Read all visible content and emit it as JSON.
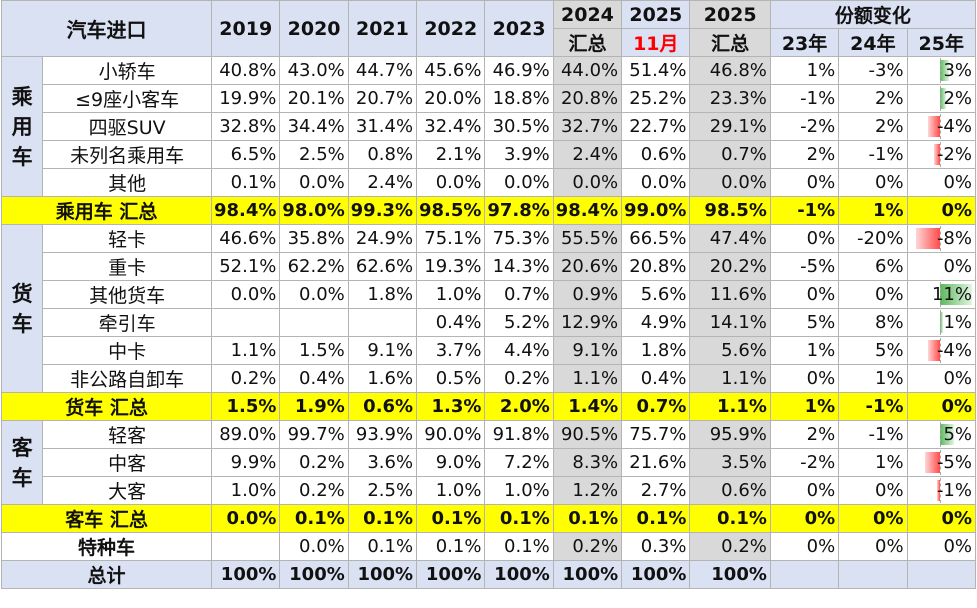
{
  "table": {
    "header": {
      "title": "汽车进口",
      "years": [
        {
          "top": "2019",
          "bottom": ""
        },
        {
          "top": "2020",
          "bottom": ""
        },
        {
          "top": "2021",
          "bottom": ""
        },
        {
          "top": "2022",
          "bottom": ""
        },
        {
          "top": "2023",
          "bottom": ""
        },
        {
          "top": "2024",
          "bottom": "汇总"
        },
        {
          "top": "2025",
          "bottom": "11月"
        },
        {
          "top": "2025",
          "bottom": "汇总"
        }
      ],
      "share_change": "份额变化",
      "share_years": [
        "23年",
        "24年",
        "25年"
      ]
    },
    "groups": [
      {
        "name": "乘用车",
        "rows": [
          {
            "label": "小轿车",
            "values": [
              "40.8%",
              "43.0%",
              "44.7%",
              "45.6%",
              "46.9%",
              "44.0%",
              "51.4%",
              "46.8%"
            ],
            "changes": [
              "1%",
              "-3%",
              "3%"
            ],
            "bar": 3
          },
          {
            "label": "≤9座小客车",
            "values": [
              "19.9%",
              "20.1%",
              "20.7%",
              "20.0%",
              "18.8%",
              "20.8%",
              "25.2%",
              "23.3%"
            ],
            "changes": [
              "-1%",
              "2%",
              "2%"
            ],
            "bar": 2
          },
          {
            "label": "四驱SUV",
            "values": [
              "32.8%",
              "34.4%",
              "31.4%",
              "32.4%",
              "30.5%",
              "32.7%",
              "22.7%",
              "29.1%"
            ],
            "changes": [
              "-2%",
              "2%",
              "-4%"
            ],
            "bar": -4
          },
          {
            "label": "未列名乘用车",
            "values": [
              "6.5%",
              "2.5%",
              "0.8%",
              "2.1%",
              "3.9%",
              "2.4%",
              "0.6%",
              "0.7%"
            ],
            "changes": [
              "2%",
              "-1%",
              "-2%"
            ],
            "bar": -2
          },
          {
            "label": "其他",
            "values": [
              "0.1%",
              "0.0%",
              "2.4%",
              "0.0%",
              "0.0%",
              "0.0%",
              "0.0%",
              "0.0%"
            ],
            "changes": [
              "0%",
              "0%",
              "0%"
            ],
            "bar": 0
          }
        ],
        "summary": {
          "label": "乘用车 汇总",
          "values": [
            "98.4%",
            "98.0%",
            "99.3%",
            "98.5%",
            "97.8%",
            "98.4%",
            "99.0%",
            "98.5%"
          ],
          "changes": [
            "-1%",
            "1%",
            "0%"
          ],
          "bar": 0
        }
      },
      {
        "name": "货车",
        "rows": [
          {
            "label": "轻卡",
            "values": [
              "46.6%",
              "35.8%",
              "24.9%",
              "75.1%",
              "75.3%",
              "55.5%",
              "66.5%",
              "47.4%"
            ],
            "changes": [
              "0%",
              "-20%",
              "-8%"
            ],
            "bar": -8
          },
          {
            "label": "重卡",
            "values": [
              "52.1%",
              "62.2%",
              "62.6%",
              "19.3%",
              "14.3%",
              "20.6%",
              "20.8%",
              "20.2%"
            ],
            "changes": [
              "-5%",
              "6%",
              "0%"
            ],
            "bar": 0
          },
          {
            "label": "其他货车",
            "values": [
              "0.0%",
              "0.0%",
              "1.8%",
              "1.0%",
              "0.7%",
              "0.9%",
              "5.6%",
              "11.6%"
            ],
            "changes": [
              "0%",
              "0%",
              "11%"
            ],
            "bar": 11
          },
          {
            "label": "牵引车",
            "values": [
              "",
              "",
              "",
              "0.4%",
              "5.2%",
              "12.9%",
              "4.9%",
              "14.1%"
            ],
            "changes": [
              "5%",
              "8%",
              "1%"
            ],
            "bar": 1
          },
          {
            "label": "中卡",
            "values": [
              "1.1%",
              "1.5%",
              "9.1%",
              "3.7%",
              "4.4%",
              "9.1%",
              "1.8%",
              "5.6%"
            ],
            "changes": [
              "1%",
              "5%",
              "-4%"
            ],
            "bar": -4
          },
          {
            "label": "非公路自卸车",
            "values": [
              "0.2%",
              "0.4%",
              "1.6%",
              "0.5%",
              "0.2%",
              "1.1%",
              "0.4%",
              "1.1%"
            ],
            "changes": [
              "0%",
              "1%",
              "0%"
            ],
            "bar": 0
          }
        ],
        "summary": {
          "label": "货车 汇总",
          "values": [
            "1.5%",
            "1.9%",
            "0.6%",
            "1.3%",
            "2.0%",
            "1.4%",
            "0.7%",
            "1.1%"
          ],
          "changes": [
            "1%",
            "-1%",
            "0%"
          ],
          "bar": 0
        }
      },
      {
        "name": "客车",
        "rows": [
          {
            "label": "轻客",
            "values": [
              "89.0%",
              "99.7%",
              "93.9%",
              "90.0%",
              "91.8%",
              "90.5%",
              "75.7%",
              "95.9%"
            ],
            "changes": [
              "2%",
              "-1%",
              "5%"
            ],
            "bar": 5
          },
          {
            "label": "中客",
            "values": [
              "9.9%",
              "0.2%",
              "3.6%",
              "9.0%",
              "7.2%",
              "8.3%",
              "21.6%",
              "3.5%"
            ],
            "changes": [
              "-2%",
              "1%",
              "-5%"
            ],
            "bar": -5
          },
          {
            "label": "大客",
            "values": [
              "1.0%",
              "0.2%",
              "2.5%",
              "1.0%",
              "1.0%",
              "1.2%",
              "2.7%",
              "0.6%"
            ],
            "changes": [
              "0%",
              "0%",
              "-1%"
            ],
            "bar": -1
          }
        ],
        "summary": {
          "label": "客车 汇总",
          "values": [
            "0.0%",
            "0.1%",
            "0.1%",
            "0.1%",
            "0.1%",
            "0.1%",
            "0.1%",
            "0.1%"
          ],
          "changes": [
            "0%",
            "0%",
            "0%"
          ],
          "bar": 0
        }
      }
    ],
    "special": {
      "label": "特种车",
      "values": [
        "",
        "0.0%",
        "0.1%",
        "0.1%",
        "0.1%",
        "0.2%",
        "0.3%",
        "0.2%"
      ],
      "changes": [
        "0%",
        "0%",
        "0%"
      ],
      "bar": 0
    },
    "total": {
      "label": "总计",
      "values": [
        "100%",
        "100%",
        "100%",
        "100%",
        "100%",
        "100%",
        "100%",
        "100%"
      ],
      "changes": [
        "",
        "",
        ""
      ],
      "bar": 0
    },
    "colors": {
      "header_bg": "#d9e1f2",
      "gray_col_bg": "#d9d9d9",
      "summary_bg": "#ffff00",
      "red_text": "#ff0000",
      "bar_negative": "#ff4b4b",
      "bar_positive": "#5cb85c"
    },
    "bar_max_abs": 11
  }
}
